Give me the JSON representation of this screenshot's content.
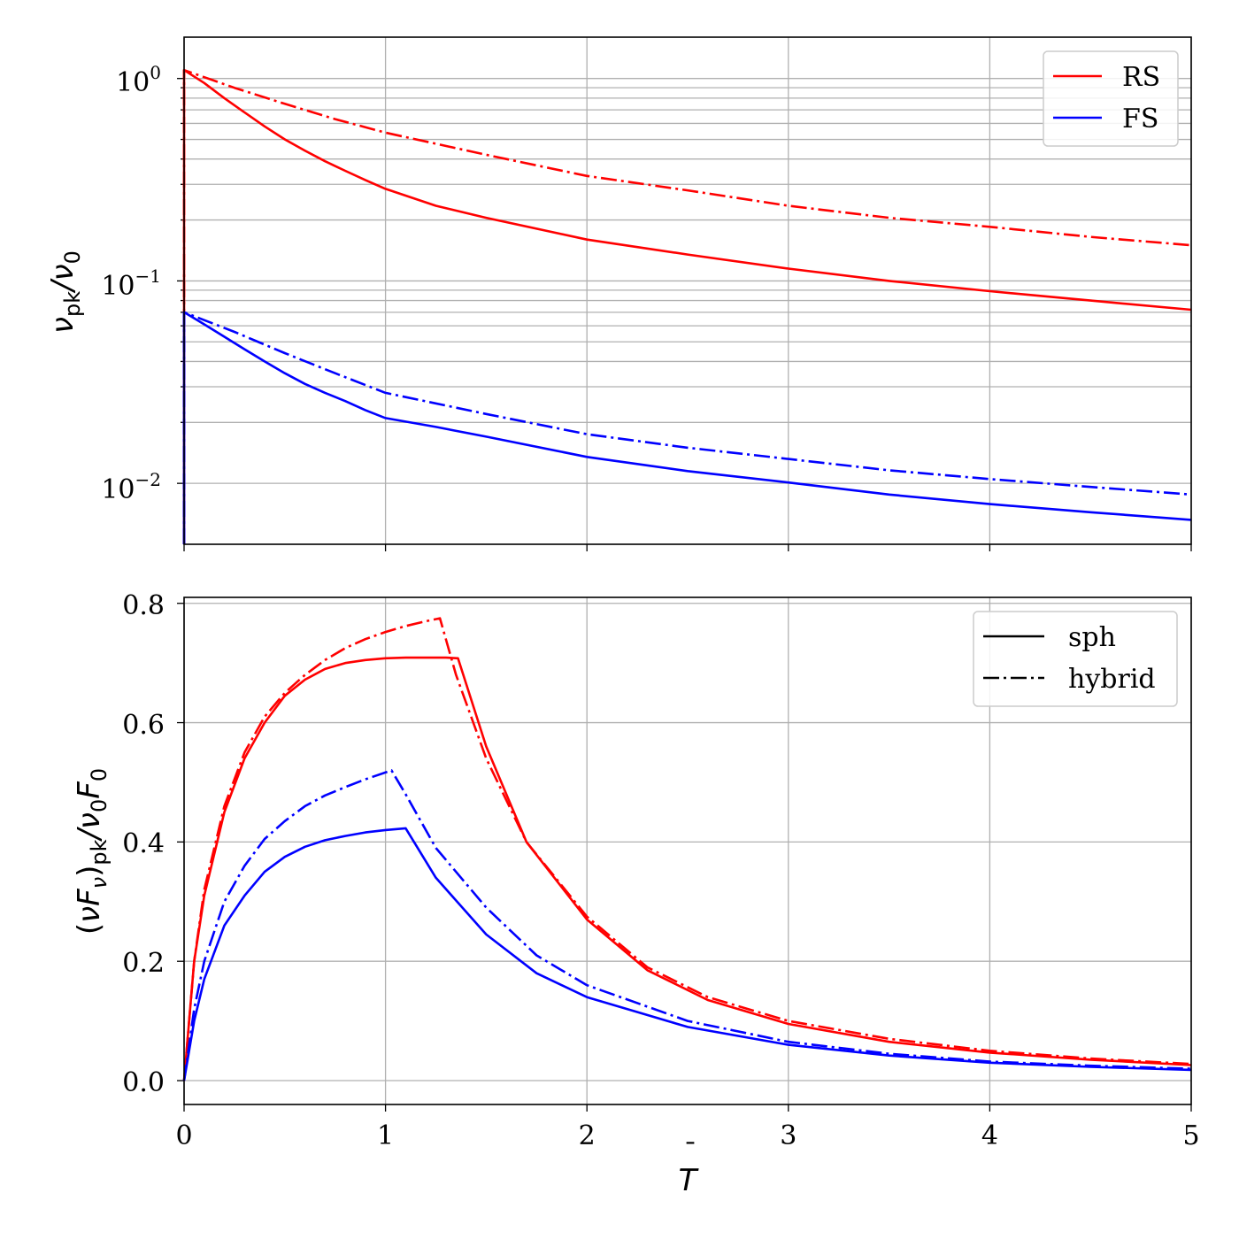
{
  "chart_data": [
    {
      "type": "line",
      "panel": "top",
      "yscale": "log",
      "ylim": [
        0.005,
        1.6
      ],
      "xlim": [
        0,
        5
      ],
      "xlabel": "",
      "ylabel": "ν_pk/ν_0",
      "ylabel_parts": {
        "a": "ν",
        "a_sub": "pk",
        "slash": "/",
        "b": "ν",
        "b_sub": "0"
      },
      "yticks": [
        {
          "value": 1,
          "base": "10",
          "exp": "0"
        },
        {
          "value": 0.1,
          "base": "10",
          "exp": "−1"
        },
        {
          "value": 0.01,
          "base": "10",
          "exp": "−2"
        }
      ],
      "legend": {
        "position": "top-right",
        "entries": [
          {
            "label": "RS",
            "color": "#ff0000",
            "style": "solid"
          },
          {
            "label": "FS",
            "color": "#0000ff",
            "style": "solid"
          }
        ]
      },
      "series": [
        {
          "name": "RS sph",
          "color": "#ff0000",
          "style": "solid",
          "x": [
            0,
            0.1,
            0.2,
            0.3,
            0.4,
            0.5,
            0.6,
            0.7,
            0.8,
            0.9,
            1.0,
            1.25,
            1.5,
            2.0,
            2.5,
            3.0,
            3.5,
            4.0,
            4.5,
            5.0
          ],
          "y": [
            1.1,
            0.95,
            0.8,
            0.68,
            0.58,
            0.5,
            0.44,
            0.39,
            0.35,
            0.315,
            0.285,
            0.235,
            0.205,
            0.16,
            0.135,
            0.115,
            0.1,
            0.089,
            0.08,
            0.072
          ]
        },
        {
          "name": "RS hybrid",
          "color": "#ff0000",
          "style": "dashdot",
          "x": [
            0,
            0.25,
            0.5,
            0.75,
            1.0,
            1.5,
            2.0,
            2.5,
            3.0,
            3.5,
            4.0,
            4.5,
            5.0
          ],
          "y": [
            1.1,
            0.9,
            0.75,
            0.63,
            0.54,
            0.42,
            0.33,
            0.28,
            0.235,
            0.205,
            0.185,
            0.165,
            0.15
          ]
        },
        {
          "name": "FS sph",
          "color": "#0000ff",
          "style": "solid",
          "x": [
            0,
            0.1,
            0.2,
            0.3,
            0.4,
            0.5,
            0.6,
            0.7,
            0.8,
            0.9,
            1.0,
            1.25,
            1.5,
            2.0,
            2.5,
            3.0,
            3.5,
            4.0,
            4.5,
            5.0
          ],
          "y": [
            0.07,
            0.061,
            0.053,
            0.046,
            0.04,
            0.035,
            0.031,
            0.028,
            0.0255,
            0.023,
            0.021,
            0.019,
            0.017,
            0.0135,
            0.0115,
            0.0101,
            0.0088,
            0.0079,
            0.0072,
            0.0066
          ]
        },
        {
          "name": "FS hybrid",
          "color": "#0000ff",
          "style": "dashdot",
          "x": [
            0,
            0.25,
            0.5,
            0.75,
            1.0,
            1.5,
            2.0,
            2.5,
            3.0,
            3.5,
            4.0,
            4.5,
            5.0
          ],
          "y": [
            0.07,
            0.056,
            0.044,
            0.035,
            0.028,
            0.022,
            0.0175,
            0.015,
            0.0132,
            0.0116,
            0.0105,
            0.0096,
            0.0088
          ]
        }
      ]
    },
    {
      "type": "line",
      "panel": "bottom",
      "yscale": "linear",
      "ylim": [
        -0.04,
        0.81
      ],
      "xlim": [
        0,
        5
      ],
      "xlabel": "T̄",
      "xlabel_parts": {
        "bar": "¯",
        "sym": "T"
      },
      "ylabel": "(νF_ν)_pk/ν_0F_0",
      "ylabel_parts": {
        "open": "(",
        "a": "νF",
        "a_sub": "ν",
        "close": ")",
        "close_sub": "pk",
        "slash": "/",
        "b": "ν",
        "b_sub": "0",
        "c": "F",
        "c_sub": "0"
      },
      "xticks": [
        "0",
        "1",
        "2",
        "3",
        "4",
        "5"
      ],
      "yticks": [
        "0.0",
        "0.2",
        "0.4",
        "0.6",
        "0.8"
      ],
      "legend": {
        "position": "top-right",
        "entries": [
          {
            "label": "sph",
            "color": "#000000",
            "style": "solid"
          },
          {
            "label": "hybrid",
            "color": "#000000",
            "style": "dashdot"
          }
        ]
      },
      "series": [
        {
          "name": "RS sph",
          "color": "#ff0000",
          "style": "solid",
          "x": [
            0,
            0.05,
            0.1,
            0.2,
            0.3,
            0.4,
            0.5,
            0.6,
            0.7,
            0.8,
            0.9,
            1.0,
            1.1,
            1.2,
            1.3,
            1.36,
            1.5,
            1.7,
            2.0,
            2.3,
            2.6,
            3.0,
            3.5,
            4.0,
            4.5,
            5.0
          ],
          "y": [
            0,
            0.2,
            0.31,
            0.45,
            0.54,
            0.6,
            0.645,
            0.672,
            0.69,
            0.7,
            0.705,
            0.708,
            0.709,
            0.709,
            0.709,
            0.708,
            0.56,
            0.4,
            0.27,
            0.185,
            0.135,
            0.095,
            0.065,
            0.047,
            0.035,
            0.026
          ]
        },
        {
          "name": "RS hybrid",
          "color": "#ff0000",
          "style": "dashdot",
          "x": [
            0,
            0.05,
            0.1,
            0.2,
            0.3,
            0.4,
            0.5,
            0.6,
            0.7,
            0.8,
            0.9,
            1.0,
            1.1,
            1.2,
            1.27,
            1.35,
            1.5,
            1.7,
            2.0,
            2.3,
            2.6,
            3.0,
            3.5,
            4.0,
            4.5,
            5.0
          ],
          "y": [
            0,
            0.2,
            0.32,
            0.46,
            0.55,
            0.61,
            0.65,
            0.68,
            0.705,
            0.725,
            0.74,
            0.752,
            0.762,
            0.77,
            0.775,
            0.68,
            0.54,
            0.4,
            0.275,
            0.19,
            0.14,
            0.1,
            0.07,
            0.05,
            0.037,
            0.028
          ]
        },
        {
          "name": "FS sph",
          "color": "#0000ff",
          "style": "solid",
          "x": [
            0,
            0.05,
            0.1,
            0.2,
            0.3,
            0.4,
            0.5,
            0.6,
            0.7,
            0.8,
            0.9,
            1.0,
            1.1,
            1.25,
            1.5,
            1.75,
            2.0,
            2.5,
            3.0,
            3.5,
            4.0,
            4.5,
            5.0
          ],
          "y": [
            0,
            0.1,
            0.17,
            0.26,
            0.31,
            0.35,
            0.375,
            0.392,
            0.403,
            0.41,
            0.416,
            0.42,
            0.423,
            0.34,
            0.245,
            0.18,
            0.14,
            0.09,
            0.06,
            0.042,
            0.03,
            0.023,
            0.018
          ]
        },
        {
          "name": "FS hybrid",
          "color": "#0000ff",
          "style": "dashdot",
          "x": [
            0,
            0.05,
            0.1,
            0.2,
            0.3,
            0.4,
            0.5,
            0.6,
            0.7,
            0.8,
            0.9,
            1.03,
            1.1,
            1.25,
            1.5,
            1.75,
            2.0,
            2.5,
            3.0,
            3.5,
            4.0,
            4.5,
            5.0
          ],
          "y": [
            0,
            0.12,
            0.2,
            0.3,
            0.36,
            0.405,
            0.435,
            0.46,
            0.478,
            0.492,
            0.505,
            0.52,
            0.48,
            0.39,
            0.29,
            0.21,
            0.16,
            0.1,
            0.065,
            0.045,
            0.032,
            0.025,
            0.02
          ]
        }
      ]
    }
  ]
}
